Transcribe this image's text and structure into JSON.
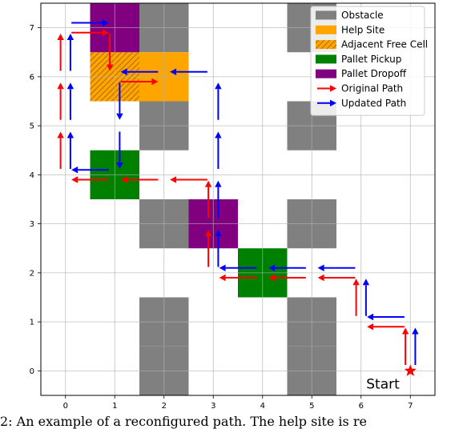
{
  "chart_data": {
    "type": "grid-path-plot",
    "xlim": [
      -0.5,
      7.5
    ],
    "ylim": [
      -0.5,
      7.5
    ],
    "x_ticks": [
      "0",
      "1",
      "2",
      "3",
      "4",
      "5",
      "6",
      "7"
    ],
    "y_ticks": [
      "0",
      "1",
      "2",
      "3",
      "4",
      "5",
      "6",
      "7"
    ],
    "grid": true,
    "legend_position": "top-right",
    "legend": [
      {
        "label": "Obstacle",
        "kind": "patch",
        "color": "#808080"
      },
      {
        "label": "Help Site",
        "kind": "patch",
        "color": "#ffa500"
      },
      {
        "label": "Adjacent Free Cell",
        "kind": "hatched-patch",
        "color": "#ffa500"
      },
      {
        "label": "Pallet Pickup",
        "kind": "patch",
        "color": "#008000"
      },
      {
        "label": "Pallet Dropoff",
        "kind": "patch",
        "color": "#800080"
      },
      {
        "label": "Original Path",
        "kind": "arrow",
        "color": "#ff0000"
      },
      {
        "label": "Updated Path",
        "kind": "arrow",
        "color": "#0000ff"
      }
    ],
    "cells": [
      {
        "kind": "obstacle",
        "x": 2,
        "y": 7
      },
      {
        "kind": "obstacle",
        "x": 2,
        "y": 5
      },
      {
        "kind": "obstacle",
        "x": 2,
        "y": 3
      },
      {
        "kind": "obstacle",
        "x": 2,
        "y": 1
      },
      {
        "kind": "obstacle",
        "x": 2,
        "y": 0
      },
      {
        "kind": "obstacle",
        "x": 5,
        "y": 7
      },
      {
        "kind": "obstacle",
        "x": 5,
        "y": 5
      },
      {
        "kind": "obstacle",
        "x": 5,
        "y": 3
      },
      {
        "kind": "obstacle",
        "x": 5,
        "y": 1
      },
      {
        "kind": "obstacle",
        "x": 5,
        "y": 0
      },
      {
        "kind": "help_site",
        "x": 2,
        "y": 6
      },
      {
        "kind": "adjacent_free",
        "x": 1,
        "y": 6
      },
      {
        "kind": "pickup",
        "x": 1,
        "y": 4
      },
      {
        "kind": "pickup",
        "x": 4,
        "y": 2
      },
      {
        "kind": "dropoff",
        "x": 1,
        "y": 7
      },
      {
        "kind": "dropoff",
        "x": 3,
        "y": 3
      }
    ],
    "original_path": [
      [
        7,
        0
      ],
      [
        7,
        1
      ],
      [
        6,
        1
      ],
      [
        6,
        2
      ],
      [
        5,
        2
      ],
      [
        4,
        2
      ],
      [
        3,
        2
      ],
      [
        3,
        3
      ],
      [
        3,
        4
      ],
      [
        2,
        4
      ],
      [
        1,
        4
      ],
      [
        0,
        4
      ],
      [
        0,
        5
      ],
      [
        0,
        6
      ],
      [
        0,
        7
      ],
      [
        1,
        7
      ],
      [
        1,
        6
      ],
      [
        2,
        6
      ]
    ],
    "updated_path": [
      [
        7,
        0
      ],
      [
        7,
        1
      ],
      [
        6,
        1
      ],
      [
        6,
        2
      ],
      [
        5,
        2
      ],
      [
        4,
        2
      ],
      [
        3,
        2
      ],
      [
        3,
        3
      ],
      [
        3,
        4
      ],
      [
        3,
        5
      ],
      [
        3,
        6
      ],
      [
        2,
        6
      ],
      [
        1,
        6
      ],
      [
        1,
        5
      ],
      [
        1,
        4
      ],
      [
        0,
        4
      ],
      [
        0,
        5
      ],
      [
        0,
        6
      ],
      [
        0,
        7
      ],
      [
        1,
        7
      ]
    ],
    "start_marker": {
      "x": 7,
      "y": 0,
      "label": "Start",
      "color": "#ff0000"
    }
  },
  "caption": "2: An example of a reconfigured path. The help site is re"
}
